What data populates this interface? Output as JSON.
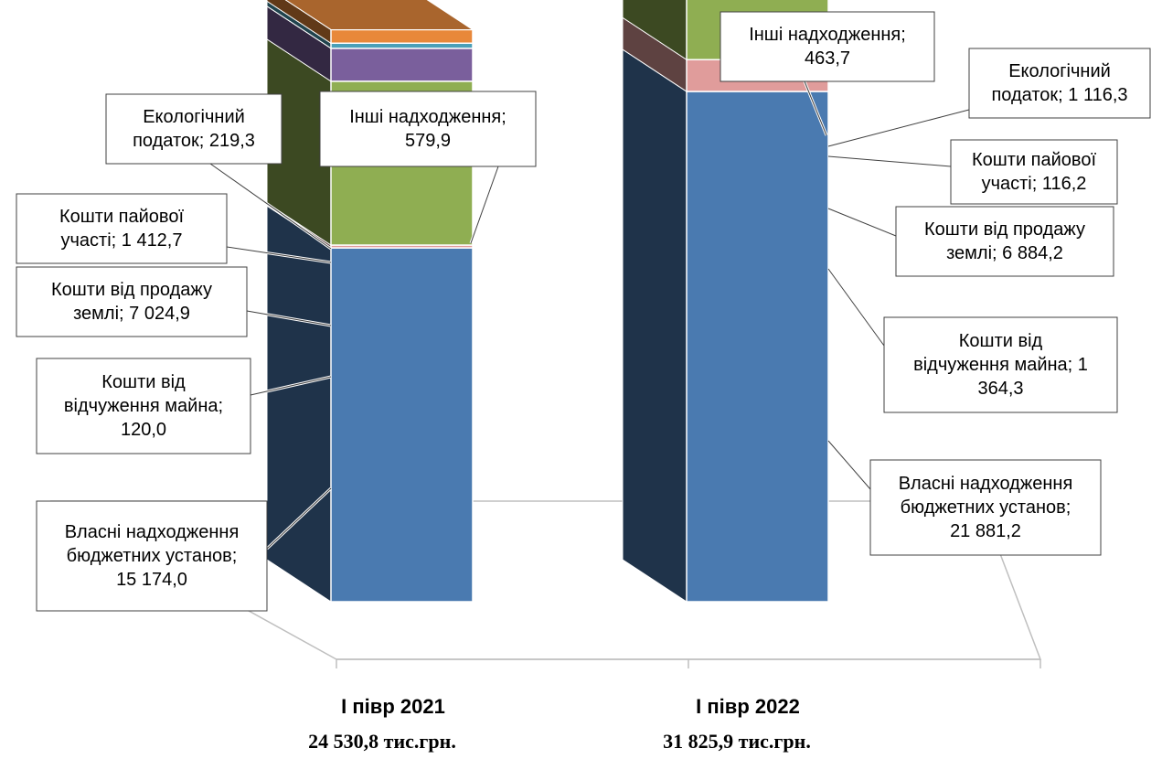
{
  "chart_data": {
    "type": "bar",
    "stacked": true,
    "three_d": true,
    "categories": [
      "І півр 2021",
      "І півр 2022"
    ],
    "totals": [
      "24 530,8 тис.грн.",
      "31 825,9 тис.грн."
    ],
    "series": [
      {
        "name": "Власні надходження бюджетних установ",
        "values": [
          15174.0,
          21881.2
        ],
        "color": "#4A7AB0",
        "labels": [
          "Власні надходження бюджетних установ; 15 174,0",
          "Власні надходження бюджетних установ; 21 881,2"
        ]
      },
      {
        "name": "Кошти від відчуження майна",
        "values": [
          120.0,
          1364.3
        ],
        "color": "#E09C9B",
        "labels": [
          "Кошти від відчуження майна; 120,0",
          "Кошти від відчуження майна; 1 364,3"
        ]
      },
      {
        "name": "Кошти від продажу землі",
        "values": [
          7024.9,
          6884.2
        ],
        "color": "#8FAE52",
        "labels": [
          "Кошти від продажу землі; 7 024,9",
          "Кошти від продажу землі; 6 884,2"
        ]
      },
      {
        "name": "Кошти пайової участі",
        "values": [
          1412.7,
          116.2
        ],
        "color": "#7A5F9C",
        "labels": [
          "Кошти пайової участі; 1 412,7",
          "Кошти пайової участі;  116,2"
        ]
      },
      {
        "name": "Екологічний податок",
        "values": [
          219.3,
          1116.3
        ],
        "color": "#4BA0B8",
        "labels": [
          "Екологічний податок;  219,3",
          "Екологічний податок; 1 116,3"
        ]
      },
      {
        "name": "Інші надходження",
        "values": [
          579.9,
          463.7
        ],
        "color": "#E8883A",
        "labels": [
          "Інші надходження; 579,9",
          "Інші надходження; 463,7"
        ]
      }
    ],
    "top_color": "#A9652D",
    "callouts": [
      {
        "lines": [
          "Власні надходження",
          "бюджетних установ;",
          "15 174,0"
        ]
      },
      {
        "lines": [
          "Кошти від",
          "відчуження майна;",
          "120,0"
        ]
      },
      {
        "lines": [
          "Кошти від продажу",
          "землі; 7 024,9"
        ]
      },
      {
        "lines": [
          "Кошти пайової",
          "участі; 1 412,7"
        ]
      },
      {
        "lines": [
          "Екологічний",
          "податок;  219,3"
        ]
      },
      {
        "lines": [
          "Інші надходження;",
          "579,9"
        ]
      },
      {
        "lines": [
          "Власні надходження",
          "бюджетних установ;",
          "21 881,2"
        ]
      },
      {
        "lines": [
          "Кошти від",
          "відчуження майна; 1",
          "364,3"
        ]
      },
      {
        "lines": [
          "Кошти від продажу",
          "землі; 6 884,2"
        ]
      },
      {
        "lines": [
          "Кошти пайової",
          "участі;  116,2"
        ]
      },
      {
        "lines": [
          "Екологічний",
          "податок; 1 116,3"
        ]
      },
      {
        "lines": [
          "Інші надходження;",
          "463,7"
        ]
      }
    ]
  }
}
